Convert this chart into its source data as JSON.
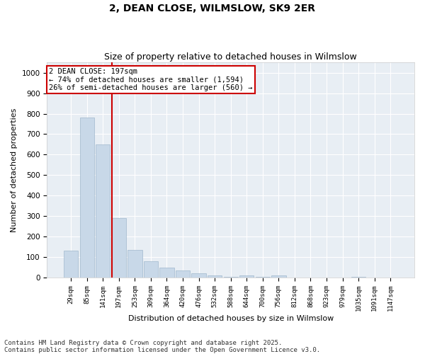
{
  "title": "2, DEAN CLOSE, WILMSLOW, SK9 2ER",
  "subtitle": "Size of property relative to detached houses in Wilmslow",
  "xlabel": "Distribution of detached houses by size in Wilmslow",
  "ylabel": "Number of detached properties",
  "bin_labels": [
    "29sqm",
    "85sqm",
    "141sqm",
    "197sqm",
    "253sqm",
    "309sqm",
    "364sqm",
    "420sqm",
    "476sqm",
    "532sqm",
    "588sqm",
    "644sqm",
    "700sqm",
    "756sqm",
    "812sqm",
    "868sqm",
    "923sqm",
    "979sqm",
    "1035sqm",
    "1091sqm",
    "1147sqm"
  ],
  "bar_heights": [
    130,
    780,
    650,
    290,
    135,
    80,
    50,
    35,
    20,
    10,
    5,
    10,
    5,
    10,
    2,
    2,
    0,
    0,
    5,
    0,
    2
  ],
  "bar_color": "#c8d8e8",
  "bar_edge_color": "#a0b8cc",
  "vline_x_index": 3,
  "vline_color": "#cc0000",
  "annotation_text": "2 DEAN CLOSE: 197sqm\n← 74% of detached houses are smaller (1,594)\n26% of semi-detached houses are larger (560) →",
  "annotation_box_color": "#cc0000",
  "ylim": [
    0,
    1050
  ],
  "yticks": [
    0,
    100,
    200,
    300,
    400,
    500,
    600,
    700,
    800,
    900,
    1000
  ],
  "background_color": "#e8eef4",
  "footer_text": "Contains HM Land Registry data © Crown copyright and database right 2025.\nContains public sector information licensed under the Open Government Licence v3.0.",
  "title_fontsize": 10,
  "subtitle_fontsize": 9,
  "annotation_fontsize": 7.5,
  "footer_fontsize": 6.5,
  "ylabel_fontsize": 8,
  "xlabel_fontsize": 8
}
